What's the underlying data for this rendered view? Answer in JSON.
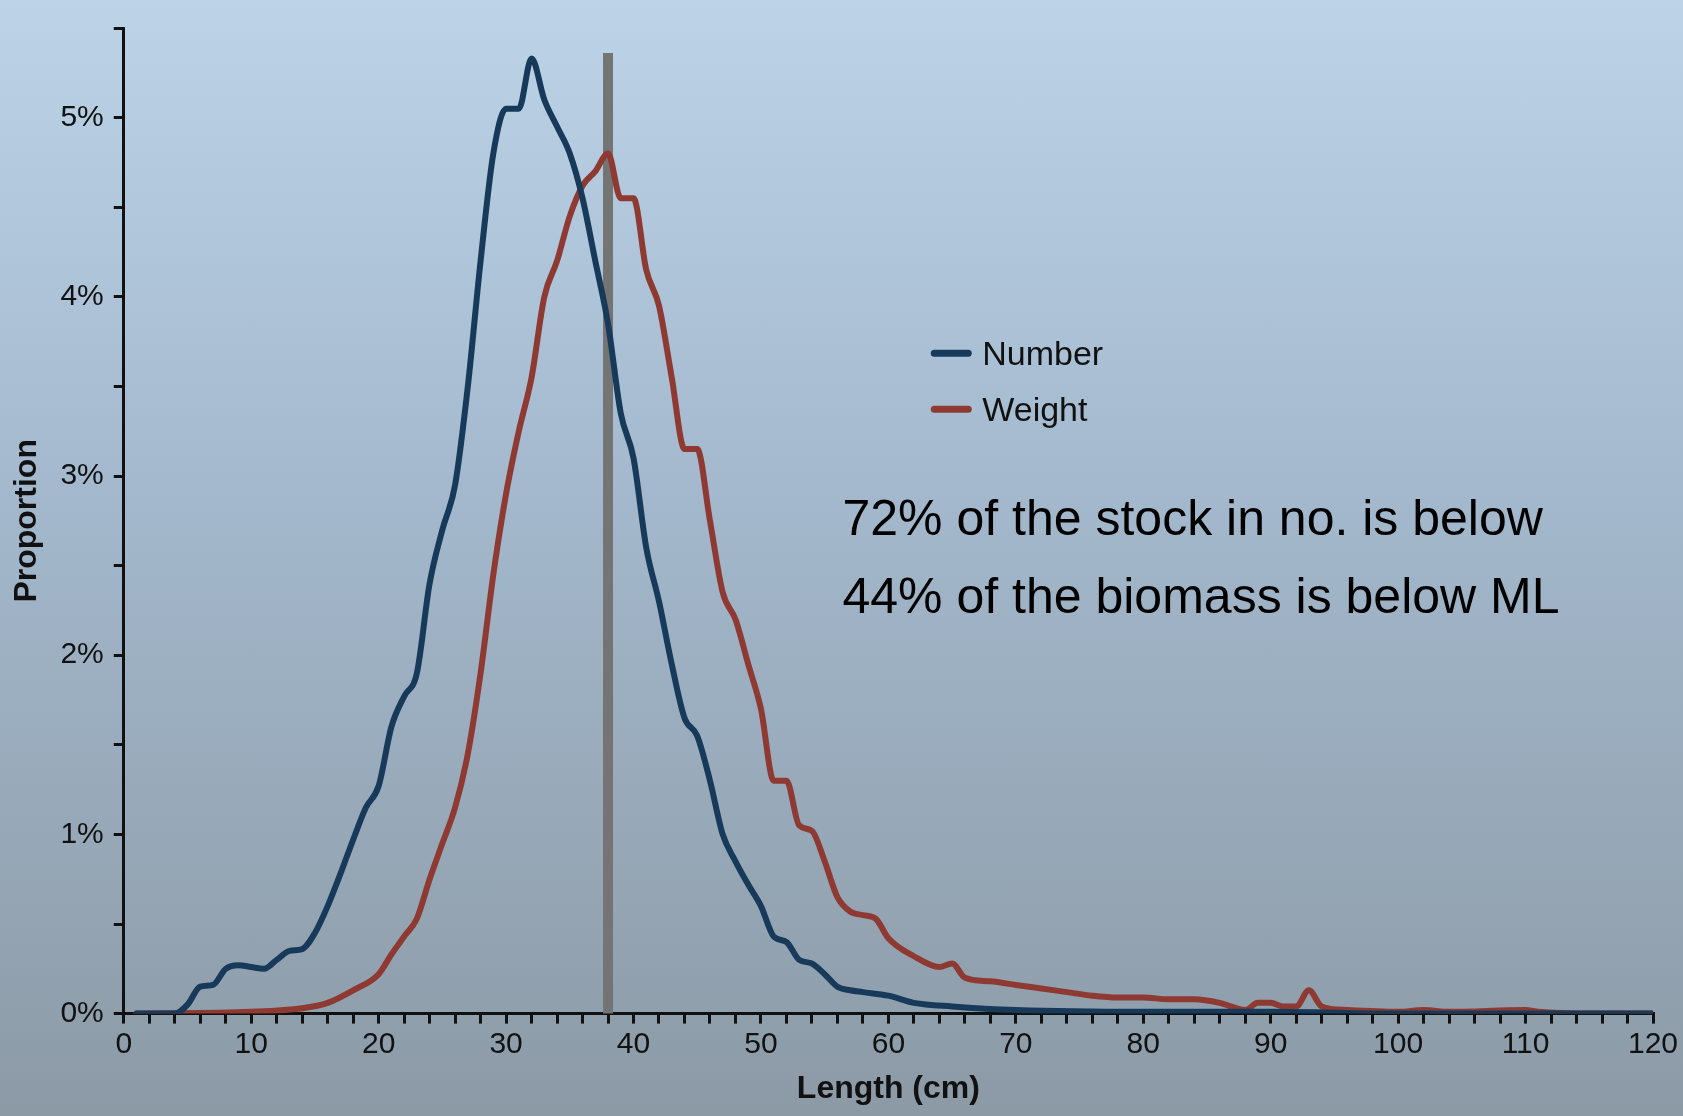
{
  "chart_data": {
    "type": "line",
    "xlabel": "Length (cm)",
    "ylabel": "Proportion",
    "xlim": [
      0,
      120
    ],
    "ylim": [
      0,
      5.5
    ],
    "xticks": [
      0,
      {
        "value": 2,
        "label": null
      },
      {
        "value": 4,
        "label": null
      },
      {
        "value": 6,
        "label": null
      },
      {
        "value": 8,
        "label": null
      },
      10,
      {
        "value": 12,
        "label": null
      },
      {
        "value": 14,
        "label": null
      },
      {
        "value": 16,
        "label": null
      },
      {
        "value": 18,
        "label": null
      },
      20,
      {
        "value": 22,
        "label": null
      },
      {
        "value": 24,
        "label": null
      },
      {
        "value": 26,
        "label": null
      },
      {
        "value": 28,
        "label": null
      },
      30,
      {
        "value": 32,
        "label": null
      },
      {
        "value": 34,
        "label": null
      },
      {
        "value": 36,
        "label": null
      },
      {
        "value": 38,
        "label": null
      },
      40,
      {
        "value": 42,
        "label": null
      },
      {
        "value": 44,
        "label": null
      },
      {
        "value": 46,
        "label": null
      },
      {
        "value": 48,
        "label": null
      },
      50,
      {
        "value": 52,
        "label": null
      },
      {
        "value": 54,
        "label": null
      },
      {
        "value": 56,
        "label": null
      },
      {
        "value": 58,
        "label": null
      },
      60,
      {
        "value": 62,
        "label": null
      },
      {
        "value": 64,
        "label": null
      },
      {
        "value": 66,
        "label": null
      },
      {
        "value": 68,
        "label": null
      },
      70,
      {
        "value": 72,
        "label": null
      },
      {
        "value": 74,
        "label": null
      },
      {
        "value": 76,
        "label": null
      },
      {
        "value": 78,
        "label": null
      },
      80,
      {
        "value": 82,
        "label": null
      },
      {
        "value": 84,
        "label": null
      },
      {
        "value": 86,
        "label": null
      },
      {
        "value": 88,
        "label": null
      },
      90,
      {
        "value": 92,
        "label": null
      },
      {
        "value": 94,
        "label": null
      },
      {
        "value": 96,
        "label": null
      },
      {
        "value": 98,
        "label": null
      },
      100,
      {
        "value": 102,
        "label": null
      },
      {
        "value": 104,
        "label": null
      },
      {
        "value": 106,
        "label": null
      },
      {
        "value": 108,
        "label": null
      },
      110,
      {
        "value": 112,
        "label": null
      },
      {
        "value": 114,
        "label": null
      },
      {
        "value": 116,
        "label": null
      },
      {
        "value": 118,
        "label": null
      },
      120
    ],
    "yticks": [
      {
        "value": 0,
        "label": "0%"
      },
      {
        "value": 0.5,
        "label": null
      },
      {
        "value": 1,
        "label": "1%"
      },
      {
        "value": 1.5,
        "label": null
      },
      {
        "value": 2,
        "label": "2%"
      },
      {
        "value": 2.5,
        "label": null
      },
      {
        "value": 3,
        "label": "3%"
      },
      {
        "value": 3.5,
        "label": null
      },
      {
        "value": 4,
        "label": "4%"
      },
      {
        "value": 4.5,
        "label": null
      },
      {
        "value": 5,
        "label": "5%"
      },
      {
        "value": 5.5,
        "label": null
      }
    ],
    "grid": false,
    "legend": "right",
    "ref_lines": [
      {
        "axis": "x",
        "value": 38,
        "color": "#747474"
      }
    ],
    "annotations": [
      "72% of the stock in no. is below",
      "44% of the biomass is below ML"
    ],
    "series": [
      {
        "name": "Number",
        "color": "#173a5a",
        "x": [
          1,
          4,
          5,
          6,
          7,
          8,
          9,
          10,
          11,
          12,
          13,
          14,
          15,
          16,
          17,
          18,
          19,
          20,
          21,
          22,
          23,
          24,
          25,
          26,
          27,
          28,
          29,
          30,
          31,
          32,
          33,
          34,
          35,
          36,
          37,
          38,
          39,
          40,
          41,
          42,
          43,
          44,
          45,
          46,
          47,
          48,
          49,
          50,
          51,
          52,
          53,
          54,
          55,
          56,
          57,
          58,
          60,
          62,
          65,
          70,
          80,
          90,
          100,
          120
        ],
        "values": [
          0,
          0,
          0.05,
          0.15,
          0.16,
          0.25,
          0.27,
          0.26,
          0.25,
          0.3,
          0.35,
          0.36,
          0.45,
          0.6,
          0.78,
          0.97,
          1.15,
          1.27,
          1.6,
          1.77,
          1.9,
          2.4,
          2.7,
          2.95,
          3.5,
          4.2,
          4.8,
          5.05,
          5.05,
          5.33,
          5.1,
          4.95,
          4.8,
          4.55,
          4.2,
          3.85,
          3.35,
          3.1,
          2.6,
          2.3,
          1.95,
          1.65,
          1.55,
          1.3,
          1,
          0.85,
          0.72,
          0.6,
          0.43,
          0.4,
          0.3,
          0.28,
          0.22,
          0.15,
          0.13,
          0.12,
          0.1,
          0.06,
          0.04,
          0.02,
          0.01,
          0.01,
          0,
          0
        ]
      },
      {
        "name": "Weight",
        "color": "#8e3a33",
        "x": [
          1,
          10,
          14,
          16,
          18,
          20,
          21,
          22,
          23,
          24,
          25,
          26,
          27,
          28,
          29,
          30,
          31,
          32,
          33,
          34,
          35,
          36,
          37,
          38,
          39,
          40,
          41,
          42,
          43,
          44,
          45,
          46,
          47,
          48,
          49,
          50,
          51,
          52,
          53,
          54,
          55,
          56,
          57,
          58,
          59,
          60,
          62,
          64,
          65,
          66,
          68,
          70,
          72,
          74,
          76,
          78,
          80,
          82,
          84,
          86,
          88,
          89,
          90,
          91,
          92,
          93,
          94,
          96,
          100,
          102,
          104,
          110,
          111,
          115,
          120
        ],
        "values": [
          0,
          0.01,
          0.03,
          0.06,
          0.13,
          0.22,
          0.33,
          0.43,
          0.53,
          0.75,
          0.95,
          1.15,
          1.45,
          1.9,
          2.45,
          2.9,
          3.25,
          3.55,
          4,
          4.2,
          4.45,
          4.62,
          4.7,
          4.8,
          4.55,
          4.55,
          4.15,
          3.95,
          3.55,
          3.15,
          3.15,
          2.75,
          2.35,
          2.2,
          1.95,
          1.7,
          1.3,
          1.3,
          1.05,
          1.02,
          0.85,
          0.65,
          0.57,
          0.55,
          0.53,
          0.42,
          0.32,
          0.26,
          0.28,
          0.2,
          0.18,
          0.16,
          0.14,
          0.12,
          0.1,
          0.09,
          0.09,
          0.08,
          0.08,
          0.06,
          0.02,
          0.06,
          0.06,
          0.04,
          0.04,
          0.13,
          0.04,
          0.02,
          0.01,
          0.02,
          0.01,
          0.02,
          0.01,
          0,
          0
        ]
      }
    ]
  }
}
